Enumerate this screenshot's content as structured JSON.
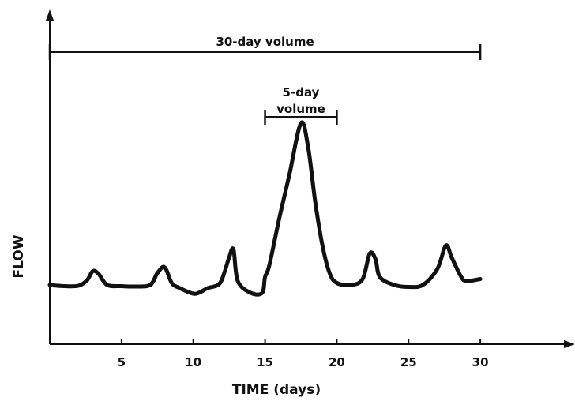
{
  "chart_data": {
    "type": "line",
    "title": "",
    "xlabel": "TIME (days)",
    "ylabel": "FLOW",
    "xlim": [
      0,
      35
    ],
    "x_ticks": [
      5,
      10,
      15,
      20,
      25,
      30
    ],
    "grid": false,
    "series": [
      {
        "x": [
          0,
          1,
          2,
          2.6,
          3,
          3.4,
          4,
          5,
          6,
          7,
          7.5,
          8,
          8.5,
          9,
          10,
          10.5,
          11,
          11.8,
          12.2,
          12.5,
          12.8,
          13.1,
          14,
          14.8,
          15,
          15.3,
          16,
          16.7,
          17.5,
          18,
          18.5,
          19,
          19.5,
          20,
          21,
          21.8,
          22.3,
          22.7,
          23,
          24,
          25,
          26,
          27,
          27.6,
          28,
          28.6,
          29,
          30
        ],
        "y": [
          0.1,
          0.07,
          0.08,
          0.22,
          0.45,
          0.38,
          0.1,
          0.07,
          0.06,
          0.1,
          0.4,
          0.55,
          0.15,
          0.03,
          -0.12,
          -0.08,
          0.02,
          0.12,
          0.45,
          0.8,
          1.0,
          0.2,
          -0.1,
          -0.1,
          0.3,
          0.6,
          1.8,
          2.9,
          4.2,
          3.6,
          2.2,
          1.1,
          0.4,
          0.15,
          0.1,
          0.25,
          0.9,
          0.75,
          0.3,
          0.1,
          0.05,
          0.1,
          0.5,
          1.1,
          0.8,
          0.35,
          0.2,
          0.25
        ]
      }
    ],
    "annotations": [
      {
        "label": "30-day volume",
        "from": 0,
        "to": 30
      },
      {
        "label_lines": [
          "5-day",
          "volume"
        ],
        "from": 15,
        "to": 20
      }
    ]
  }
}
